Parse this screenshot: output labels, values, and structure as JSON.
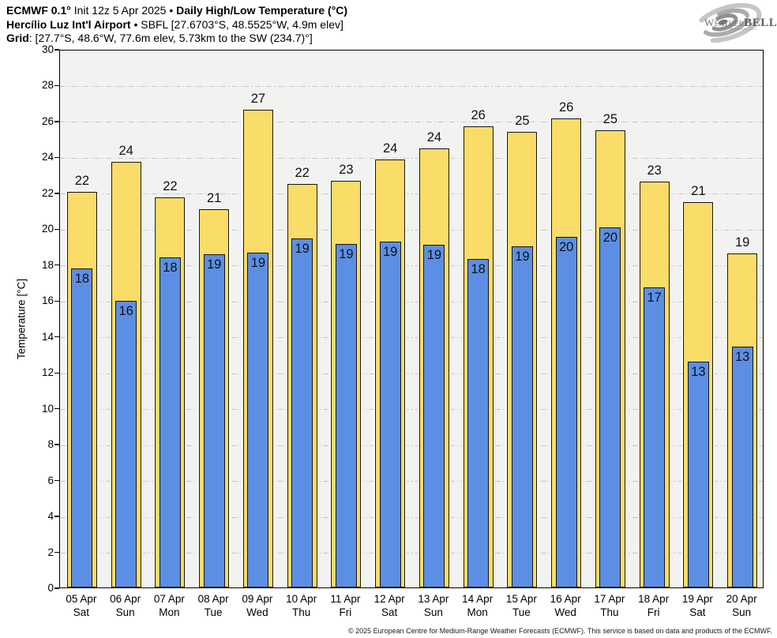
{
  "header": {
    "line1": {
      "bold1": "ECMWF 0.1°",
      "regular": " Init 12z 5 Apr 2025 • ",
      "bold2": "Daily High/Low Temperature (°C)"
    },
    "line2": {
      "bold": "Hercílio Luz Int'l Airport",
      "regular": " • SBFL [27.6703°S, 48.5525°W, 4.9m elev]"
    },
    "line3": {
      "bold": "Grid",
      "regular": ": [27.7°S, 48.6°W, 77.6m elev, 5.73km to the SW (234.7)°]"
    }
  },
  "logo": {
    "weather": "Weather",
    "bell": "BELL",
    "subtext": "Analytics LLC"
  },
  "chart_data": {
    "type": "bar",
    "title": "Daily High/Low Temperature (°C)",
    "xlabel": "",
    "ylabel": "Temperature [°C]",
    "ylim": [
      0,
      30
    ],
    "ytick_step": 2,
    "grid": true,
    "legend": "none",
    "plot_bg": "#f2f2f1",
    "grid_color": "#c7c7c7",
    "categories": [
      {
        "date": "05 Apr",
        "day": "Sat"
      },
      {
        "date": "06 Apr",
        "day": "Sun"
      },
      {
        "date": "07 Apr",
        "day": "Mon"
      },
      {
        "date": "08 Apr",
        "day": "Tue"
      },
      {
        "date": "09 Apr",
        "day": "Wed"
      },
      {
        "date": "10 Apr",
        "day": "Thu"
      },
      {
        "date": "11 Apr",
        "day": "Fri"
      },
      {
        "date": "12 Apr",
        "day": "Sat"
      },
      {
        "date": "13 Apr",
        "day": "Sun"
      },
      {
        "date": "14 Apr",
        "day": "Mon"
      },
      {
        "date": "15 Apr",
        "day": "Tue"
      },
      {
        "date": "16 Apr",
        "day": "Wed"
      },
      {
        "date": "17 Apr",
        "day": "Thu"
      },
      {
        "date": "18 Apr",
        "day": "Fri"
      },
      {
        "date": "19 Apr",
        "day": "Sat"
      },
      {
        "date": "20 Apr",
        "day": "Sun"
      }
    ],
    "series": [
      {
        "name": "Daily High",
        "color": "#FADC69",
        "values": [
          22.05,
          23.7,
          21.75,
          21.05,
          26.6,
          22.5,
          22.65,
          23.85,
          24.45,
          25.7,
          25.4,
          26.15,
          25.45,
          22.6,
          21.45,
          18.6
        ],
        "labels": [
          22,
          24,
          22,
          21,
          27,
          22,
          23,
          24,
          24,
          26,
          25,
          26,
          25,
          23,
          21,
          19
        ]
      },
      {
        "name": "Daily Low",
        "color": "#5C8FE4",
        "values": [
          17.75,
          15.95,
          18.4,
          18.55,
          18.65,
          19.45,
          19.15,
          19.25,
          19.1,
          18.3,
          19.0,
          19.55,
          20.05,
          16.7,
          12.6,
          13.4
        ],
        "labels": [
          18,
          16,
          18,
          19,
          19,
          19,
          19,
          19,
          19,
          18,
          19,
          20,
          20,
          17,
          13,
          13
        ]
      }
    ]
  },
  "footer": {
    "copyright": "© 2025 European Centre for Medium-Range Weather Forecasts (ECMWF). This service is based on data and products of the ECMWF."
  }
}
